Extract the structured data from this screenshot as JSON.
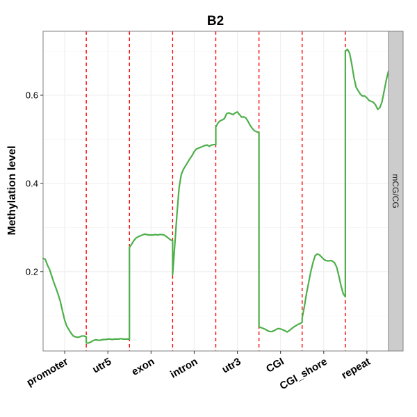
{
  "chart_data": {
    "type": "line",
    "title": "B2",
    "xlabel": "",
    "ylabel": "Methylation level",
    "ylim": [
      0.02,
      0.745
    ],
    "yticks": [
      0.2,
      0.4,
      0.6
    ],
    "ytick_labels": [
      "0.2",
      "0.4",
      "0.6"
    ],
    "categories": [
      "promoter",
      "utr5",
      "exon",
      "intron",
      "utr3",
      "CGI",
      "CGI_shore",
      "repeat"
    ],
    "facet_label": "mCG/CG",
    "grid": true,
    "colors": {
      "line": "#4daf4a",
      "separator": "#ff0000",
      "panel_border": "#7f7f7f",
      "grid": "#f0f0f0",
      "strip": "#cccccc"
    },
    "series": [
      {
        "segments": [
          {
            "x": [
              0.0,
              0.05,
              0.1,
              0.15,
              0.2,
              0.25,
              0.3,
              0.35,
              0.4,
              0.45,
              0.5,
              0.55,
              0.6,
              0.65,
              0.7,
              0.75,
              0.8,
              0.85,
              0.9,
              0.95,
              1.0
            ],
            "y": [
              0.23,
              0.228,
              0.215,
              0.205,
              0.19,
              0.175,
              0.162,
              0.148,
              0.132,
              0.11,
              0.09,
              0.076,
              0.068,
              0.06,
              0.054,
              0.052,
              0.051,
              0.052,
              0.054,
              0.054,
              0.052
            ]
          },
          {
            "x": [
              1.0,
              1.05,
              1.1,
              1.15,
              1.2,
              1.25,
              1.3,
              1.35,
              1.4,
              1.45,
              1.5,
              1.55,
              1.6,
              1.65,
              1.7,
              1.75,
              1.8,
              1.85,
              1.9,
              1.95,
              2.0
            ],
            "y": [
              0.038,
              0.038,
              0.04,
              0.043,
              0.045,
              0.045,
              0.044,
              0.045,
              0.046,
              0.046,
              0.047,
              0.047,
              0.046,
              0.047,
              0.047,
              0.047,
              0.048,
              0.047,
              0.047,
              0.047,
              0.047
            ]
          },
          {
            "x": [
              2.0,
              2.05,
              2.1,
              2.15,
              2.2,
              2.25,
              2.3,
              2.35,
              2.4,
              2.45,
              2.5,
              2.55,
              2.6,
              2.65,
              2.7,
              2.75,
              2.8,
              2.85,
              2.9,
              2.95,
              3.0
            ],
            "y": [
              0.255,
              0.262,
              0.27,
              0.276,
              0.279,
              0.281,
              0.283,
              0.285,
              0.284,
              0.283,
              0.283,
              0.283,
              0.284,
              0.283,
              0.284,
              0.284,
              0.283,
              0.28,
              0.276,
              0.272,
              0.27
            ]
          },
          {
            "x": [
              3.0,
              3.05,
              3.1,
              3.15,
              3.2,
              3.25,
              3.3,
              3.35,
              3.4,
              3.45,
              3.5,
              3.55,
              3.6,
              3.65,
              3.7,
              3.75,
              3.8,
              3.85,
              3.9,
              3.95,
              4.0
            ],
            "y": [
              0.193,
              0.26,
              0.33,
              0.39,
              0.42,
              0.432,
              0.44,
              0.448,
              0.456,
              0.463,
              0.472,
              0.478,
              0.48,
              0.482,
              0.484,
              0.486,
              0.487,
              0.484,
              0.487,
              0.488,
              0.488
            ]
          },
          {
            "x": [
              4.0,
              4.05,
              4.1,
              4.15,
              4.2,
              4.25,
              4.3,
              4.35,
              4.4,
              4.45,
              4.5,
              4.55,
              4.6,
              4.65,
              4.7,
              4.75,
              4.8,
              4.85,
              4.9,
              4.95,
              5.0
            ],
            "y": [
              0.528,
              0.537,
              0.542,
              0.544,
              0.547,
              0.558,
              0.56,
              0.558,
              0.556,
              0.56,
              0.562,
              0.556,
              0.55,
              0.551,
              0.548,
              0.54,
              0.531,
              0.524,
              0.519,
              0.517,
              0.515
            ]
          },
          {
            "x": [
              5.0,
              5.05,
              5.1,
              5.15,
              5.2,
              5.25,
              5.3,
              5.35,
              5.4,
              5.45,
              5.5,
              5.55,
              5.6,
              5.65,
              5.7,
              5.75,
              5.8,
              5.85,
              5.9,
              5.95,
              6.0
            ],
            "y": [
              0.075,
              0.073,
              0.071,
              0.069,
              0.066,
              0.064,
              0.064,
              0.066,
              0.069,
              0.071,
              0.07,
              0.068,
              0.066,
              0.063,
              0.066,
              0.07,
              0.074,
              0.077,
              0.08,
              0.082,
              0.085
            ]
          },
          {
            "x": [
              6.0,
              6.05,
              6.1,
              6.15,
              6.2,
              6.25,
              6.3,
              6.35,
              6.4,
              6.45,
              6.5,
              6.55,
              6.6,
              6.65,
              6.7,
              6.75,
              6.8,
              6.85,
              6.9,
              6.95,
              7.0
            ],
            "y": [
              0.095,
              0.12,
              0.15,
              0.175,
              0.2,
              0.22,
              0.236,
              0.24,
              0.238,
              0.233,
              0.228,
              0.225,
              0.224,
              0.225,
              0.224,
              0.22,
              0.21,
              0.19,
              0.168,
              0.15,
              0.143
            ]
          },
          {
            "x": [
              7.0,
              7.05,
              7.1,
              7.15,
              7.2,
              7.25,
              7.3,
              7.35,
              7.4,
              7.45,
              7.5,
              7.55,
              7.6,
              7.65,
              7.7,
              7.75,
              7.8,
              7.85,
              7.9,
              7.95,
              8.0
            ],
            "y": [
              0.7,
              0.704,
              0.695,
              0.67,
              0.64,
              0.618,
              0.61,
              0.602,
              0.598,
              0.598,
              0.594,
              0.588,
              0.586,
              0.584,
              0.578,
              0.568,
              0.572,
              0.585,
              0.61,
              0.635,
              0.655
            ]
          }
        ]
      }
    ]
  }
}
